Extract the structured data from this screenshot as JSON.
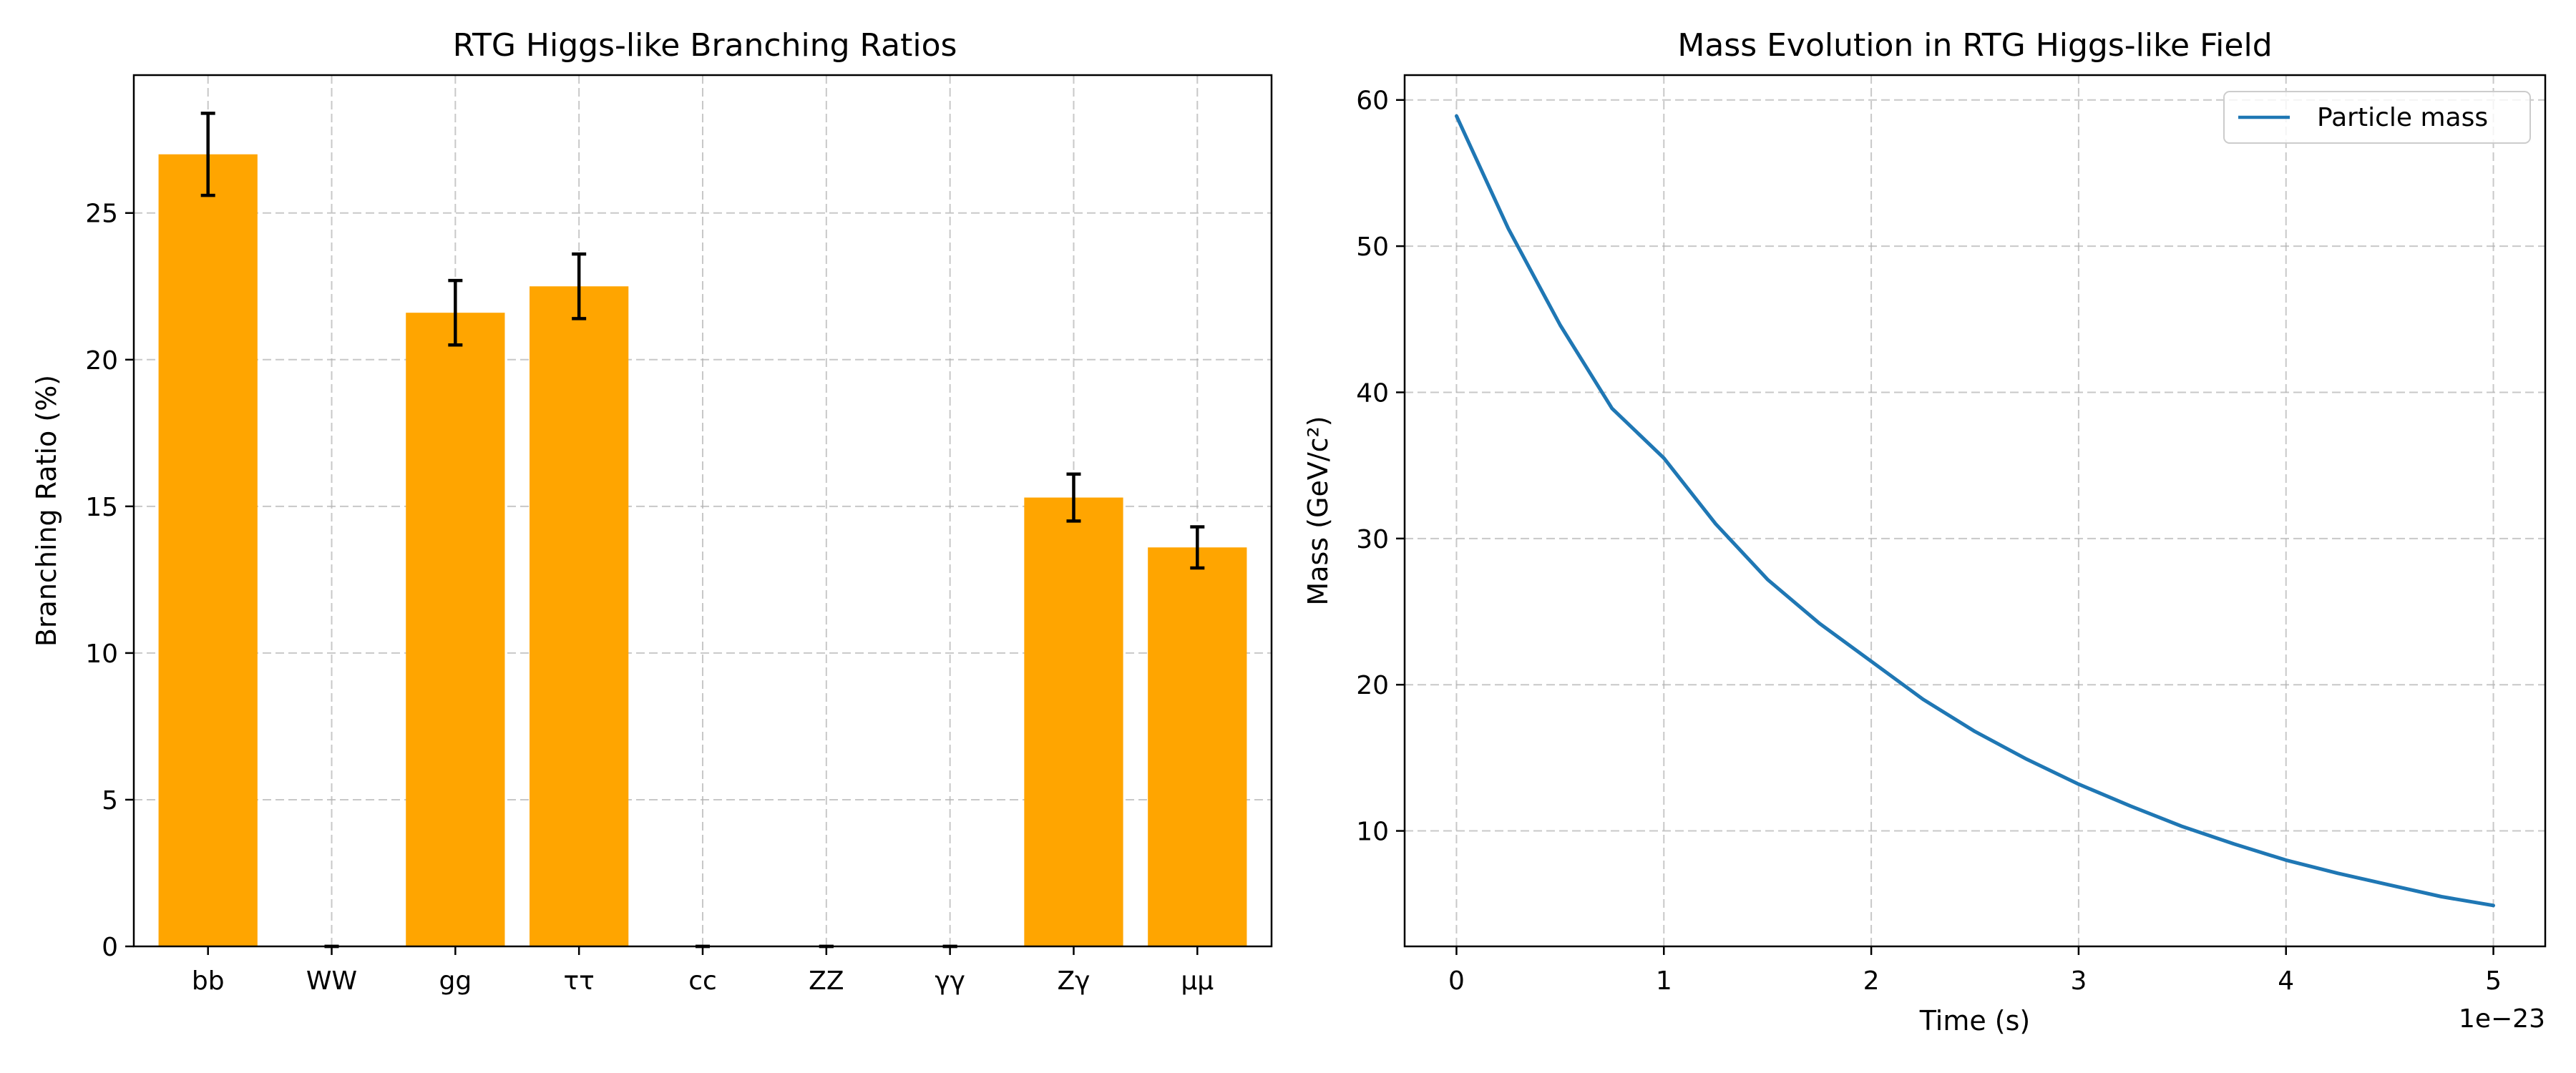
{
  "chart_data": [
    {
      "type": "bar",
      "title": "RTG Higgs-like Branching Ratios",
      "xlabel": "",
      "ylabel": "Branching Ratio (%)",
      "categories": [
        "bb",
        "WW",
        "gg",
        "ττ",
        "cc",
        "ZZ",
        "γγ",
        "Zγ",
        "μμ"
      ],
      "values": [
        27.0,
        0,
        21.6,
        22.5,
        0,
        0,
        0,
        15.3,
        13.6
      ],
      "errors": [
        1.4,
        0,
        1.1,
        1.1,
        0,
        0,
        0,
        0.8,
        0.7
      ],
      "ylim": [
        0,
        29.7
      ],
      "yticks": [
        0,
        5,
        10,
        15,
        20,
        25
      ],
      "bar_color": "#ffa500",
      "grid": true
    },
    {
      "type": "line",
      "title": "Mass Evolution in RTG Higgs-like Field",
      "xlabel": "Time (s)",
      "ylabel": "Mass (GeV/c²)",
      "x_offset_label": "1e−23",
      "xlim": [
        -0.25,
        5.25
      ],
      "ylim": [
        2.1,
        61.7
      ],
      "xticks": [
        0,
        1,
        2,
        3,
        4,
        5
      ],
      "yticks": [
        10,
        20,
        30,
        40,
        50,
        60
      ],
      "series": [
        {
          "name": "Particle mass",
          "color": "#1f77b4",
          "x": [
            0,
            0.25,
            0.5,
            0.75,
            1.0,
            1.25,
            1.5,
            1.75,
            2.0,
            2.25,
            2.5,
            2.75,
            3.0,
            3.25,
            3.5,
            3.75,
            4.0,
            4.25,
            4.5,
            4.75,
            5.0
          ],
          "y": [
            58.9,
            51.2,
            44.6,
            38.9,
            35.5,
            31.0,
            27.2,
            24.2,
            21.6,
            19.0,
            16.8,
            14.9,
            13.2,
            11.7,
            10.3,
            9.1,
            8.0,
            7.1,
            6.3,
            5.5,
            4.9
          ]
        }
      ],
      "legend_position": "upper right",
      "grid": true
    }
  ]
}
